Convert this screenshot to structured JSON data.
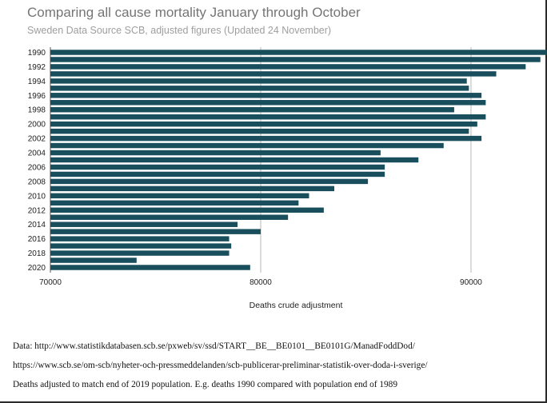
{
  "chart_data": {
    "type": "bar",
    "orientation": "horizontal",
    "title": "Comparing all cause mortality January through October",
    "subtitle": "Sweden Data Source SCB, adjusted figures (Updated 24 November)",
    "xlabel": "Deaths crude adjustment",
    "ylabel": "",
    "xlim": [
      70000,
      93500
    ],
    "xticks": [
      "70000",
      "80000",
      "90000"
    ],
    "grid": true,
    "bar_color": "#194f5c",
    "categories": [
      "1990",
      "1991",
      "1992",
      "1993",
      "1994",
      "1995",
      "1996",
      "1997",
      "1998",
      "1999",
      "2000",
      "2001",
      "2002",
      "2003",
      "2004",
      "2005",
      "2006",
      "2007",
      "2008",
      "2009",
      "2010",
      "2011",
      "2012",
      "2013",
      "2014",
      "2015",
      "2016",
      "2017",
      "2018",
      "2019",
      "2020"
    ],
    "y_tick_labels": [
      "1990",
      "1992",
      "1994",
      "1996",
      "1998",
      "2000",
      "2002",
      "2004",
      "2006",
      "2008",
      "2010",
      "2012",
      "2014",
      "2016",
      "2018",
      "2020"
    ],
    "values": [
      93600,
      93300,
      92600,
      91200,
      89800,
      89900,
      90500,
      90700,
      89200,
      90700,
      90300,
      89900,
      90500,
      88700,
      85700,
      87500,
      85900,
      85900,
      85100,
      83500,
      82300,
      81800,
      83000,
      81300,
      78900,
      80000,
      78500,
      78600,
      78500,
      74100,
      79500
    ]
  },
  "notes": {
    "data_source": "Data: http://www.statistikdatabasen.scb.se/pxweb/sv/ssd/START__BE__BE0101__BE0101G/ManadFoddDod/",
    "scb_link": "https://www.scb.se/om-scb/nyheter-och-pressmeddelanden/scb-publicerar-preliminar-statistik-over-doda-i-sverige/",
    "adjustment_note": "Deaths adjusted to match end of 2019 population. E.g. deaths 1990 compared with population end of 1989"
  }
}
